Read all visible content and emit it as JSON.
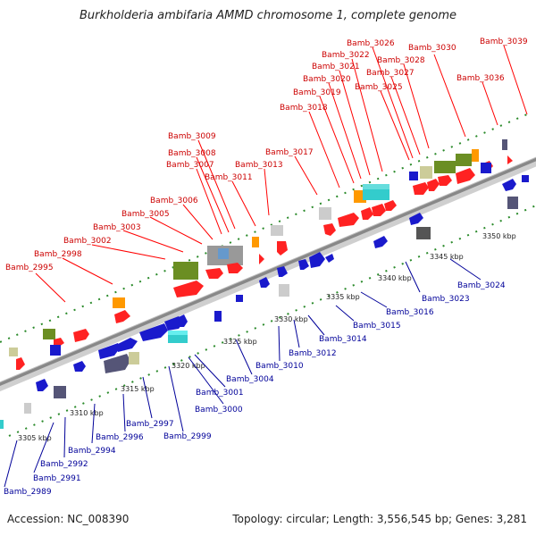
{
  "title": "Burkholderia ambifaria AMMD chromosome 1, complete genome",
  "footer": {
    "accession": "Accession: NC_008390",
    "topology": "Topology: circular; Length: 3,556,545 bp; Genes: 3,281"
  },
  "colors": {
    "upper_label": "#cc0000",
    "lower_label": "#000099",
    "forward_arrow": "#ff0000",
    "reverse_arrow": "#1a1acc",
    "backbone": "#888888",
    "tick": "#2a8a2a"
  },
  "ticks": [
    "3305 kbp",
    "3310 kbp",
    "3315 kbp",
    "3320 kbp",
    "3325 kbp",
    "3330 kbp",
    "3335 kbp",
    "3340 kbp",
    "3345 kbp",
    "3350 kbp"
  ],
  "upper_labels": [
    "Bamb_2995",
    "Bamb_2998",
    "Bamb_3002",
    "Bamb_3003",
    "Bamb_3005",
    "Bamb_3006",
    "Bamb_3007",
    "Bamb_3008",
    "Bamb_3009",
    "Bamb_3011",
    "Bamb_3013",
    "Bamb_3017",
    "Bamb_3018",
    "Bamb_3019",
    "Bamb_3020",
    "Bamb_3021",
    "Bamb_3022",
    "Bamb_3026",
    "Bamb_3028",
    "Bamb_3027",
    "Bamb_3025",
    "Bamb_3030",
    "Bamb_3036",
    "Bamb_3039"
  ],
  "lower_labels": [
    "Bamb_2989",
    "Bamb_2991",
    "Bamb_2992",
    "Bamb_2994",
    "Bamb_2996",
    "Bamb_2997",
    "Bamb_2999",
    "Bamb_3000",
    "Bamb_3001",
    "Bamb_3004",
    "Bamb_3010",
    "Bamb_3012",
    "Bamb_3014",
    "Bamb_3015",
    "Bamb_3016",
    "Bamb_3023",
    "Bamb_3024"
  ]
}
